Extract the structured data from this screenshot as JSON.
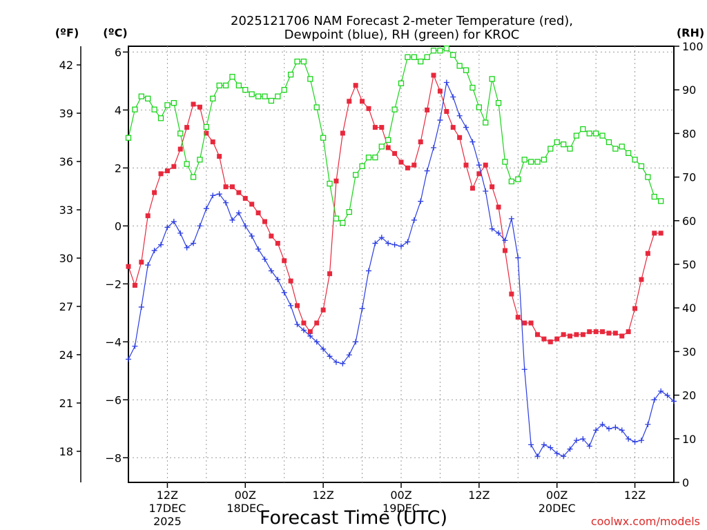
{
  "chart_data": {
    "type": "line",
    "title_line1": "2025121706 NAM Forecast 2-meter Temperature (red),",
    "title_line2": "Dewpoint (blue), RH (green) for KROC",
    "unit_f": "(ºF)",
    "unit_c": "(ºC)",
    "unit_rh": "(RH)",
    "xlabel": "Forecast Time (UTC)",
    "credit": "coolwx.com/models",
    "grid": true,
    "x_range_hours": [
      6,
      90
    ],
    "ylim_c": [
      -8.85,
      6.2
    ],
    "ylim_rh": [
      0,
      100
    ],
    "f_ticks": [
      "42",
      "39",
      "36",
      "33",
      "30",
      "27",
      "24",
      "21",
      "18"
    ],
    "c_ticks": [
      "6",
      "4",
      "2",
      "0",
      "−2",
      "−4",
      "−6",
      "−8"
    ],
    "rh_ticks": [
      "100",
      "90",
      "80",
      "70",
      "60",
      "50",
      "40",
      "30",
      "20",
      "10",
      "0"
    ],
    "x_ticks": [
      {
        "line1": "12Z",
        "line2": "17DEC",
        "line3": "2025"
      },
      {
        "line1": "00Z",
        "line2": "18DEC",
        "line3": ""
      },
      {
        "line1": "12Z",
        "line2": "",
        "line3": ""
      },
      {
        "line1": "00Z",
        "line2": "19DEC",
        "line3": ""
      },
      {
        "line1": "12Z",
        "line2": "",
        "line3": ""
      },
      {
        "line1": "00Z",
        "line2": "20DEC",
        "line3": ""
      },
      {
        "line1": "12Z",
        "line2": "",
        "line3": ""
      }
    ],
    "series": [
      {
        "name": "Temperature",
        "color": "#e8283c",
        "marker": "filled-square",
        "axis": "celsius",
        "values": [
          -1.4,
          -2.05,
          -1.25,
          0.35,
          1.15,
          1.8,
          1.9,
          2.05,
          2.65,
          3.4,
          4.2,
          4.1,
          3.2,
          2.9,
          2.4,
          1.35,
          1.35,
          1.15,
          0.95,
          0.75,
          0.45,
          0.15,
          -0.35,
          -0.6,
          -1.2,
          -1.9,
          -2.75,
          -3.35,
          -3.65,
          -3.35,
          -2.9,
          -1.65,
          1.55,
          3.2,
          4.3,
          4.85,
          4.3,
          4.05,
          3.4,
          3.4,
          2.7,
          2.5,
          2.2,
          2.0,
          2.1,
          2.9,
          4.0,
          5.2,
          4.65,
          3.95,
          3.4,
          3.05,
          2.1,
          1.3,
          1.8,
          2.1,
          1.35,
          0.65,
          -0.85,
          -2.35,
          -3.15,
          -3.35,
          -3.35,
          -3.75,
          -3.9,
          -4.0,
          -3.9,
          -3.75,
          -3.8,
          -3.75,
          -3.75,
          -3.65,
          -3.65,
          -3.65,
          -3.7,
          -3.7,
          -3.8,
          -3.65,
          -2.85,
          -1.85,
          -0.95,
          -0.25,
          -0.25
        ]
      },
      {
        "name": "Dewpoint",
        "color": "#2a3ce0",
        "marker": "plus",
        "axis": "celsius",
        "values": [
          -4.6,
          -4.15,
          -2.8,
          -1.35,
          -0.85,
          -0.65,
          -0.05,
          0.15,
          -0.25,
          -0.75,
          -0.6,
          0.0,
          0.6,
          1.05,
          1.1,
          0.8,
          0.2,
          0.45,
          0.0,
          -0.35,
          -0.8,
          -1.15,
          -1.55,
          -1.85,
          -2.3,
          -2.75,
          -3.4,
          -3.6,
          -3.8,
          -4.0,
          -4.25,
          -4.5,
          -4.7,
          -4.75,
          -4.45,
          -4.0,
          -2.85,
          -1.55,
          -0.6,
          -0.4,
          -0.6,
          -0.65,
          -0.7,
          -0.55,
          0.2,
          0.85,
          1.9,
          2.7,
          3.65,
          4.95,
          4.45,
          3.8,
          3.4,
          2.9,
          2.1,
          1.2,
          -0.1,
          -0.25,
          -0.5,
          0.25,
          -1.1,
          -4.95,
          -7.55,
          -7.95,
          -7.55,
          -7.65,
          -7.85,
          -7.95,
          -7.7,
          -7.4,
          -7.35,
          -7.6,
          -7.05,
          -6.85,
          -7.0,
          -6.95,
          -7.05,
          -7.35,
          -7.45,
          -7.4,
          -6.85,
          -6.0,
          -5.7,
          -5.85,
          -6.05
        ]
      },
      {
        "name": "RH",
        "color": "#18d418",
        "marker": "open-square",
        "axis": "rh",
        "values": [
          79,
          85.5,
          88.5,
          88,
          85.5,
          83.5,
          86.5,
          87,
          80,
          73,
          70,
          74,
          81.5,
          88,
          91,
          91,
          93,
          91,
          90,
          89,
          88.5,
          88.5,
          87.5,
          88.5,
          90,
          93.5,
          96.5,
          96.5,
          92.5,
          86,
          79,
          68.5,
          60.5,
          59.5,
          62,
          70.5,
          72.5,
          74.5,
          74.5,
          77,
          78.5,
          85.5,
          91.5,
          97.5,
          97.5,
          96.5,
          97.5,
          99,
          99,
          99.5,
          98,
          95.5,
          94.5,
          90.5,
          86,
          82.5,
          92.5,
          87,
          73.5,
          69,
          69.5,
          74,
          73.5,
          73.5,
          74,
          76.5,
          78,
          77.5,
          76.5,
          79.5,
          81,
          80,
          80,
          79.5,
          78,
          76.5,
          77,
          75.5,
          74,
          72.5,
          70,
          65.5,
          64.5
        ]
      }
    ]
  }
}
